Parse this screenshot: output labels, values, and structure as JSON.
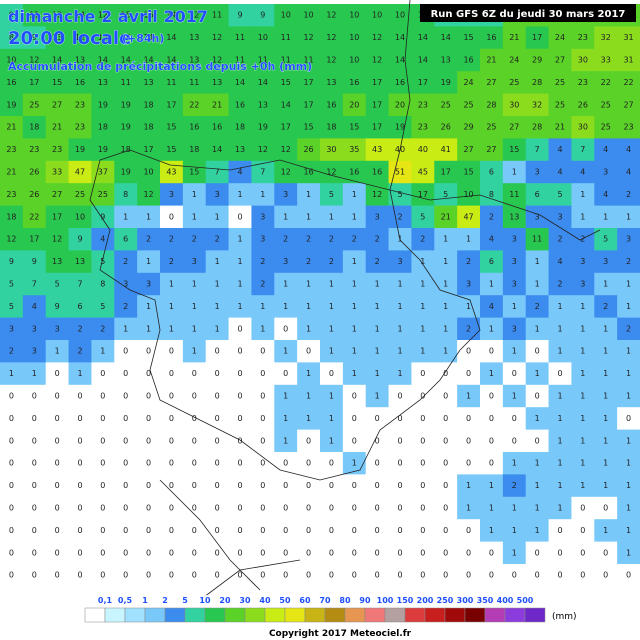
{
  "header": {
    "date": "dimanche 2 avril 2017",
    "time": "20:00 locale",
    "lead": "(+84h)",
    "subtitle": "Accumulation de précipitations depuis +0h (mm)",
    "run": "Run GFS 6Z du jeudi 30 mars 2017"
  },
  "grid": {
    "rows": [
      [
        9,
        11,
        12,
        14,
        12,
        15,
        16,
        14,
        12,
        11,
        9,
        9,
        10,
        10,
        12,
        10,
        10,
        10,
        11,
        9,
        9,
        9,
        20,
        21,
        21,
        22,
        24,
        27
      ],
      [
        8,
        9,
        13,
        12,
        12,
        14,
        14,
        14,
        13,
        12,
        11,
        10,
        11,
        12,
        12,
        10,
        12,
        14,
        14,
        14,
        15,
        16,
        21,
        17,
        24,
        23,
        32,
        31
      ],
      [
        10,
        12,
        14,
        13,
        14,
        14,
        14,
        14,
        13,
        12,
        11,
        11,
        11,
        11,
        12,
        10,
        12,
        14,
        14,
        13,
        16,
        21,
        24,
        29,
        27,
        30,
        33,
        31
      ],
      [
        16,
        17,
        15,
        16,
        13,
        11,
        13,
        11,
        11,
        13,
        14,
        14,
        15,
        17,
        13,
        16,
        17,
        16,
        17,
        19,
        24,
        27,
        25,
        28,
        25,
        23,
        22,
        22
      ],
      [
        19,
        25,
        27,
        23,
        19,
        19,
        18,
        17,
        22,
        21,
        16,
        13,
        14,
        17,
        16,
        20,
        17,
        20,
        23,
        25,
        25,
        28,
        30,
        32,
        25,
        26,
        25,
        27
      ],
      [
        21,
        18,
        21,
        23,
        18,
        19,
        18,
        15,
        16,
        16,
        18,
        19,
        17,
        15,
        18,
        15,
        17,
        19,
        23,
        26,
        29,
        25,
        27,
        28,
        21,
        30,
        25,
        23
      ],
      [
        23,
        23,
        23,
        19,
        19,
        18,
        17,
        15,
        18,
        14,
        13,
        12,
        12,
        26,
        30,
        35,
        43,
        40,
        40,
        41,
        27,
        27,
        15,
        7,
        4,
        7,
        4,
        4
      ],
      [
        21,
        26,
        33,
        47,
        37,
        19,
        10,
        43,
        15,
        7,
        4,
        7,
        12,
        16,
        12,
        16,
        16,
        51,
        45,
        17,
        15,
        6,
        1,
        3,
        4,
        4,
        3,
        4
      ],
      [
        23,
        26,
        27,
        25,
        25,
        8,
        12,
        3,
        1,
        3,
        1,
        1,
        3,
        1,
        5,
        1,
        12,
        5,
        17,
        5,
        10,
        8,
        11,
        6,
        5,
        1,
        4,
        2
      ],
      [
        18,
        22,
        17,
        10,
        9,
        1,
        1,
        0,
        1,
        1,
        0,
        3,
        1,
        1,
        1,
        1,
        3,
        2,
        5,
        21,
        47,
        2,
        13,
        3,
        3,
        1,
        1,
        1
      ],
      [
        12,
        17,
        12,
        9,
        4,
        6,
        2,
        2,
        2,
        2,
        1,
        3,
        2,
        2,
        2,
        2,
        2,
        1,
        2,
        1,
        1,
        4,
        3,
        11,
        2,
        2,
        5,
        3
      ],
      [
        9,
        9,
        13,
        13,
        5,
        2,
        1,
        2,
        3,
        1,
        1,
        2,
        3,
        2,
        2,
        1,
        2,
        3,
        1,
        1,
        2,
        6,
        3,
        1,
        4,
        3,
        3,
        2
      ],
      [
        5,
        7,
        5,
        7,
        8,
        3,
        3,
        1,
        1,
        1,
        1,
        2,
        1,
        1,
        1,
        1,
        1,
        1,
        1,
        1,
        3,
        1,
        3,
        1,
        2,
        3,
        1,
        1
      ],
      [
        5,
        4,
        9,
        6,
        5,
        2,
        1,
        1,
        1,
        1,
        1,
        1,
        1,
        1,
        1,
        1,
        1,
        1,
        1,
        1,
        1,
        4,
        1,
        2,
        1,
        1,
        2,
        1
      ],
      [
        3,
        3,
        3,
        2,
        2,
        1,
        1,
        1,
        1,
        1,
        0,
        1,
        0,
        1,
        1,
        1,
        1,
        1,
        1,
        1,
        2,
        1,
        3,
        1,
        1,
        1,
        1,
        2
      ],
      [
        2,
        3,
        1,
        2,
        1,
        0,
        0,
        0,
        1,
        0,
        0,
        0,
        1,
        0,
        1,
        1,
        1,
        1,
        1,
        1,
        0,
        0,
        1,
        0,
        1,
        1,
        1,
        1
      ],
      [
        1,
        1,
        0,
        1,
        0,
        0,
        0,
        0,
        0,
        0,
        0,
        0,
        0,
        1,
        0,
        1,
        1,
        1,
        0,
        0,
        0,
        1,
        0,
        1,
        0,
        1,
        1,
        1
      ],
      [
        0,
        0,
        0,
        0,
        0,
        0,
        0,
        0,
        0,
        0,
        0,
        0,
        1,
        1,
        1,
        0,
        1,
        0,
        0,
        0,
        1,
        0,
        1,
        0,
        1,
        1,
        1,
        1
      ],
      [
        0,
        0,
        0,
        0,
        0,
        0,
        0,
        0,
        0,
        0,
        0,
        0,
        1,
        1,
        1,
        0,
        0,
        0,
        0,
        0,
        0,
        0,
        0,
        1,
        1,
        1,
        1,
        0
      ],
      [
        0,
        0,
        0,
        0,
        0,
        0,
        0,
        0,
        0,
        0,
        0,
        0,
        1,
        0,
        1,
        0,
        0,
        0,
        0,
        0,
        0,
        0,
        0,
        0,
        1,
        1,
        1,
        1
      ],
      [
        0,
        0,
        0,
        0,
        0,
        0,
        0,
        0,
        0,
        0,
        0,
        0,
        0,
        0,
        0,
        1,
        0,
        0,
        0,
        0,
        0,
        0,
        1,
        1,
        1,
        1,
        1,
        1
      ],
      [
        0,
        0,
        0,
        0,
        0,
        0,
        0,
        0,
        0,
        0,
        0,
        0,
        0,
        0,
        0,
        0,
        0,
        0,
        0,
        0,
        1,
        1,
        2,
        1,
        1,
        1,
        1,
        1
      ],
      [
        0,
        0,
        0,
        0,
        0,
        0,
        0,
        0,
        0,
        0,
        0,
        0,
        0,
        0,
        0,
        0,
        0,
        0,
        0,
        0,
        1,
        1,
        1,
        1,
        1,
        0,
        0,
        1
      ],
      [
        0,
        0,
        0,
        0,
        0,
        0,
        0,
        0,
        0,
        0,
        0,
        0,
        0,
        0,
        0,
        0,
        0,
        0,
        0,
        0,
        0,
        1,
        1,
        1,
        0,
        0,
        1,
        1
      ],
      [
        0,
        0,
        0,
        0,
        0,
        0,
        0,
        0,
        0,
        0,
        0,
        0,
        0,
        0,
        0,
        0,
        0,
        0,
        0,
        0,
        0,
        0,
        1,
        0,
        0,
        0,
        0,
        1
      ],
      [
        0,
        0,
        0,
        0,
        0,
        0,
        0,
        0,
        0,
        0,
        0,
        0,
        0,
        0,
        0,
        0,
        0,
        0,
        0,
        0,
        0,
        0,
        0,
        0,
        0,
        0,
        0,
        0
      ]
    ]
  },
  "legend": {
    "thresholds": [
      {
        "value": 0.1,
        "label": "0,1"
      },
      {
        "value": 0.5,
        "label": "0,5"
      },
      1,
      2,
      5,
      10,
      20,
      30,
      40,
      50,
      60,
      70,
      80,
      90,
      100,
      150,
      200,
      250,
      300,
      350,
      400,
      500
    ],
    "colors": [
      "#ffffff",
      "#c8f5ff",
      "#a0e1ff",
      "#78c8fa",
      "#3c8cf0",
      "#32d2a0",
      "#28c850",
      "#5ad228",
      "#8cdc1e",
      "#c8ec14",
      "#e6e614",
      "#c8b414",
      "#b48c14",
      "#e69650",
      "#f07878",
      "#b4a0a0",
      "#dc3c3c",
      "#c81e1e",
      "#a00a0a",
      "#780000",
      "#b43cb4",
      "#8c3cdc",
      "#6e28c8"
    ],
    "unit": "(mm)"
  },
  "footer": {
    "copyright": "Copyright 2017 Meteociel.fr"
  }
}
